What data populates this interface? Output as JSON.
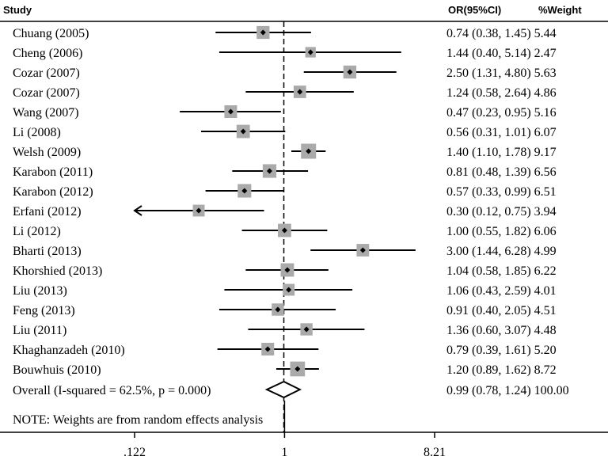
{
  "chart_data": {
    "type": "forest",
    "scale": "log",
    "header": {
      "study": "Study",
      "or_ci": "OR(95%CI)",
      "weight": "%Weight"
    },
    "studies": [
      {
        "label": "Chuang (2005)",
        "or": 0.74,
        "lo": 0.38,
        "hi": 1.45,
        "stat": "0.74 (0.38, 1.45) 5.44",
        "weight": 5.44
      },
      {
        "label": "Cheng (2006)",
        "or": 1.44,
        "lo": 0.4,
        "hi": 5.14,
        "stat": "1.44 (0.40, 5.14) 2.47",
        "weight": 2.47
      },
      {
        "label": "Cozar (2007)",
        "or": 2.5,
        "lo": 1.31,
        "hi": 4.8,
        "stat": "2.50 (1.31, 4.80) 5.63",
        "weight": 5.63
      },
      {
        "label": "Cozar (2007)",
        "or": 1.24,
        "lo": 0.58,
        "hi": 2.64,
        "stat": "1.24 (0.58, 2.64) 4.86",
        "weight": 4.86
      },
      {
        "label": "Wang (2007)",
        "or": 0.47,
        "lo": 0.23,
        "hi": 0.95,
        "stat": "0.47 (0.23, 0.95) 5.16",
        "weight": 5.16
      },
      {
        "label": "Li (2008)",
        "or": 0.56,
        "lo": 0.31,
        "hi": 1.01,
        "stat": "0.56 (0.31, 1.01) 6.07",
        "weight": 6.07
      },
      {
        "label": "Welsh (2009)",
        "or": 1.4,
        "lo": 1.1,
        "hi": 1.78,
        "stat": "1.40 (1.10, 1.78) 9.17",
        "weight": 9.17
      },
      {
        "label": "Karabon (2011)",
        "or": 0.81,
        "lo": 0.48,
        "hi": 1.39,
        "stat": "0.81 (0.48, 1.39) 6.56",
        "weight": 6.56
      },
      {
        "label": "Karabon (2012)",
        "or": 0.57,
        "lo": 0.33,
        "hi": 0.99,
        "stat": "0.57 (0.33, 0.99) 6.51",
        "weight": 6.51
      },
      {
        "label": "Erfani (2012)",
        "or": 0.3,
        "lo": 0.12,
        "hi": 0.75,
        "stat": "0.30 (0.12, 0.75) 3.94",
        "weight": 3.94
      },
      {
        "label": "Li (2012)",
        "or": 1.0,
        "lo": 0.55,
        "hi": 1.82,
        "stat": "1.00 (0.55, 1.82) 6.06",
        "weight": 6.06
      },
      {
        "label": "Bharti (2013)",
        "or": 3.0,
        "lo": 1.44,
        "hi": 6.28,
        "stat": "3.00 (1.44, 6.28) 4.99",
        "weight": 4.99
      },
      {
        "label": "Khorshied (2013)",
        "or": 1.04,
        "lo": 0.58,
        "hi": 1.85,
        "stat": "1.04 (0.58, 1.85) 6.22",
        "weight": 6.22
      },
      {
        "label": "Liu (2013)",
        "or": 1.06,
        "lo": 0.43,
        "hi": 2.59,
        "stat": "1.06 (0.43, 2.59) 4.01",
        "weight": 4.01
      },
      {
        "label": "Feng (2013)",
        "or": 0.91,
        "lo": 0.4,
        "hi": 2.05,
        "stat": "0.91 (0.40, 2.05) 4.51",
        "weight": 4.51
      },
      {
        "label": "Liu (2011)",
        "or": 1.36,
        "lo": 0.6,
        "hi": 3.07,
        "stat": "1.36 (0.60, 3.07) 4.48",
        "weight": 4.48
      },
      {
        "label": "Khaghanzadeh (2010)",
        "or": 0.79,
        "lo": 0.39,
        "hi": 1.61,
        "stat": "0.79 (0.39, 1.61) 5.20",
        "weight": 5.2
      },
      {
        "label": "Bouwhuis (2010)",
        "or": 1.2,
        "lo": 0.89,
        "hi": 1.62,
        "stat": "1.20 (0.89, 1.62) 8.72",
        "weight": 8.72
      }
    ],
    "overall": {
      "label": "Overall  (I-squared = 62.5%, p = 0.000)",
      "or": 0.99,
      "lo": 0.78,
      "hi": 1.24,
      "stat": "0.99 (0.78, 1.24) 100.00"
    },
    "note": "NOTE: Weights are from random effects analysis",
    "ticks": [
      {
        "value": 0.122,
        "label": ".122"
      },
      {
        "value": 1,
        "label": "1"
      },
      {
        "value": 8.21,
        "label": "8.21"
      }
    ],
    "xlim": [
      0.122,
      8.21
    ],
    "colors": {
      "box": "#aaaaaa",
      "line": "#000000"
    }
  }
}
